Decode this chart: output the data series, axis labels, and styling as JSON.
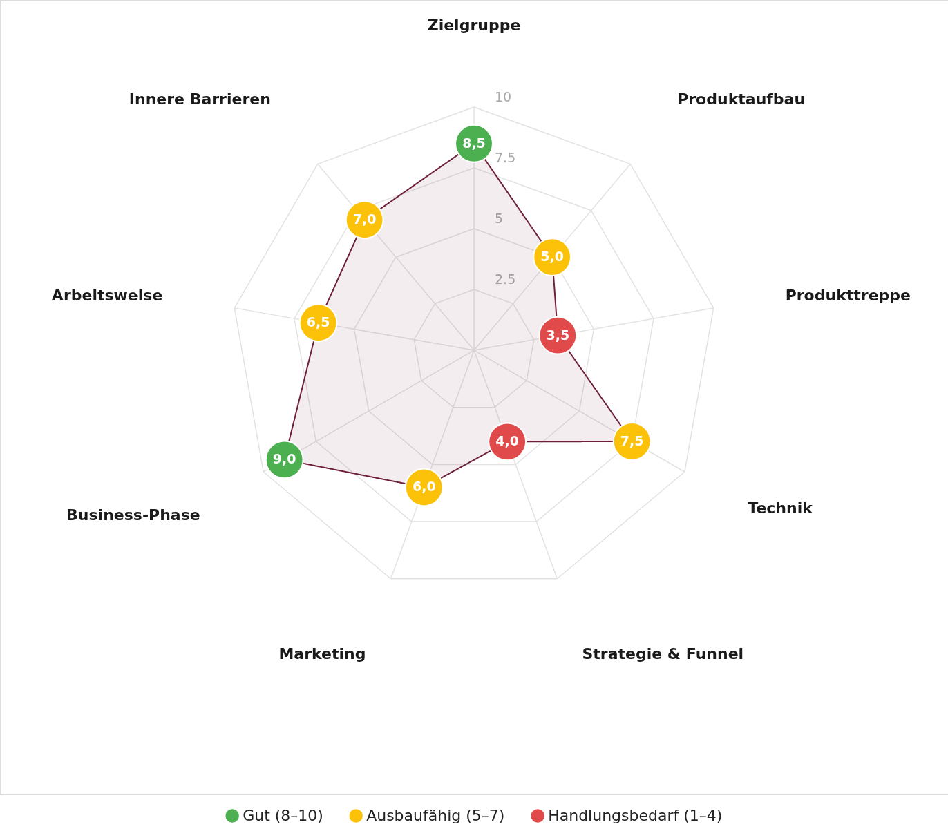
{
  "chart_data": {
    "type": "radar",
    "categories": [
      "Zielgruppe",
      "Produktaufbau",
      "Produkttreppe",
      "Technik",
      "Strategie & Funnel",
      "Marketing",
      "Business-Phase",
      "Arbeitsweise",
      "Innere Barrieren"
    ],
    "ylim": [
      0,
      10
    ],
    "yticks": [
      2.5,
      5,
      7.5,
      10
    ],
    "grid": true,
    "legend": "bottom",
    "marker": "circle",
    "series": [
      {
        "color": "#6e1f3a",
        "values": [
          8.5,
          5.0,
          3.5,
          7.5,
          4.0,
          6.0,
          9.0,
          6.5,
          7.0
        ],
        "colors": [
          "#4caf50",
          "#fcc20a",
          "#e04a4a",
          "#fcc20a",
          "#e04a4a",
          "#fcc20a",
          "#4caf50",
          "#fcc20a",
          "#fcc20a"
        ],
        "value_labels": [
          "8,5",
          "5,0",
          "3,5",
          "7,5",
          "4,0",
          "6,0",
          "9,0",
          "6,5",
          "7,0"
        ]
      },
      {
        "name": "Gut (8–10)",
        "color": "#4caf50",
        "values": [
          null,
          null,
          null,
          null,
          null,
          null,
          null,
          null,
          null
        ]
      },
      {
        "name": "Ausbaufähig (5–7)",
        "color": "#fcc20a",
        "values": [
          null,
          null,
          null,
          null,
          null,
          null,
          null,
          null,
          null
        ]
      },
      {
        "name": "Handlungsbedarf (1–4)",
        "color": "#e04a4a",
        "values": [
          null,
          null,
          null,
          null,
          null,
          null,
          null,
          null,
          null
        ]
      }
    ]
  }
}
